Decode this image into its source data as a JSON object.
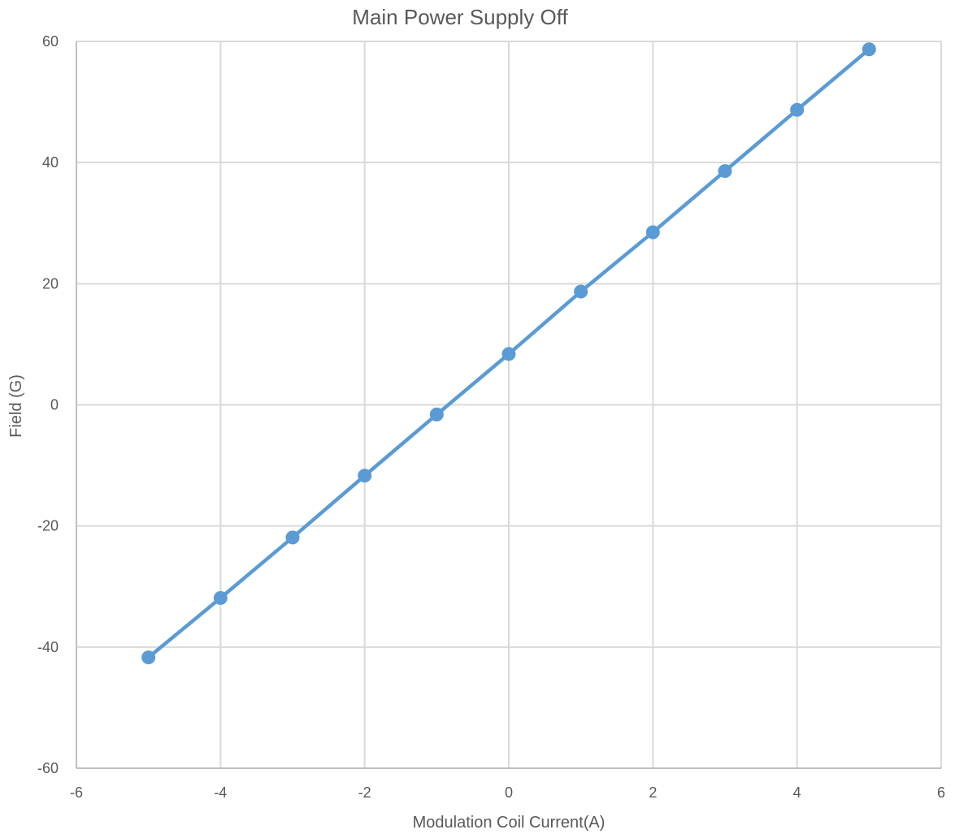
{
  "chart_data": {
    "type": "line",
    "title": "Main Power Supply Off",
    "xlabel": "Modulation Coil Current(A)",
    "ylabel": "Field (G)",
    "xlim": [
      -6,
      6
    ],
    "ylim": [
      -60,
      60
    ],
    "x_ticks": [
      -6,
      -4,
      -2,
      0,
      2,
      4,
      6
    ],
    "y_ticks": [
      -60,
      -40,
      -20,
      0,
      20,
      40,
      60
    ],
    "x_tick_labels": [
      "-6",
      "-4",
      "-2",
      "0",
      "2",
      "4",
      "6"
    ],
    "y_tick_labels": [
      "-60",
      "-40",
      "-20",
      "0",
      "20",
      "40",
      "60"
    ],
    "grid": true,
    "legend": "none",
    "series": [
      {
        "color": "#5b9bd5",
        "markers": true,
        "x": [
          -5,
          -4,
          -3,
          -2,
          -1,
          0,
          1,
          2,
          3,
          4,
          5
        ],
        "y": [
          -41.7,
          -31.9,
          -21.9,
          -11.7,
          -1.6,
          8.4,
          18.7,
          28.5,
          38.6,
          48.7,
          58.7
        ]
      }
    ]
  }
}
